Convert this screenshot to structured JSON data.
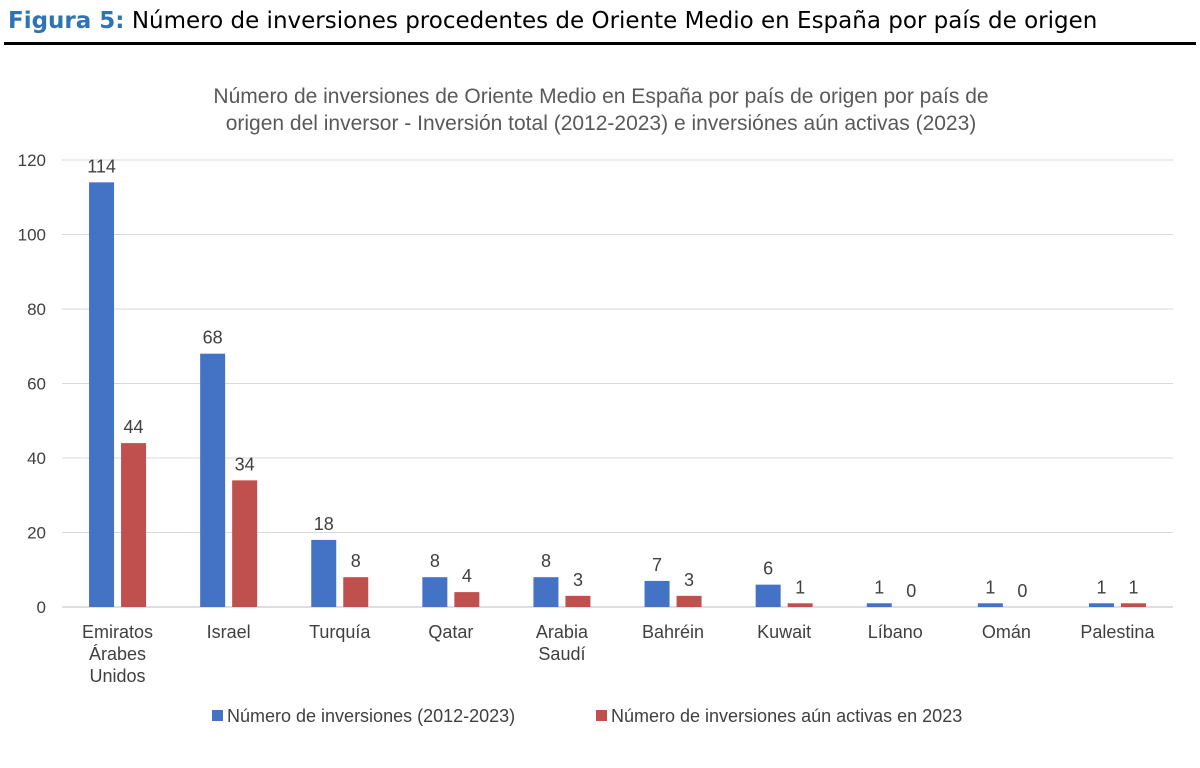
{
  "figure": {
    "label": "Figura 5:",
    "caption": "Número de inversiones procedentes de Oriente Medio en España por país de origen"
  },
  "chart_data": {
    "type": "bar",
    "title": [
      "Número de inversiones de Oriente Medio en España por país de origen por país de",
      "origen del inversor - Inversión total (2012-2023) e inversiónes aún activas (2023)"
    ],
    "categories": [
      [
        "Emiratos",
        "Árabes",
        "Unidos"
      ],
      [
        "Israel"
      ],
      [
        "Turquía"
      ],
      [
        "Qatar"
      ],
      [
        "Arabia",
        "Saudí"
      ],
      [
        "Bahréin"
      ],
      [
        "Kuwait"
      ],
      [
        "Líbano"
      ],
      [
        "Omán"
      ],
      [
        "Palestina"
      ]
    ],
    "series": [
      {
        "name": "Número de inversiones (2012-2023)",
        "color": "#4472C4",
        "values": [
          114,
          68,
          18,
          8,
          8,
          7,
          6,
          1,
          1,
          1
        ]
      },
      {
        "name": "Número de inversiones aún activas en 2023",
        "color": "#C0504D",
        "values": [
          44,
          34,
          8,
          4,
          3,
          3,
          1,
          0,
          0,
          1
        ]
      }
    ],
    "ylim": [
      0,
      120
    ],
    "yticks": [
      0,
      20,
      40,
      60,
      80,
      100,
      120
    ],
    "grid": true,
    "legend_position": "bottom",
    "data_labels": true
  }
}
